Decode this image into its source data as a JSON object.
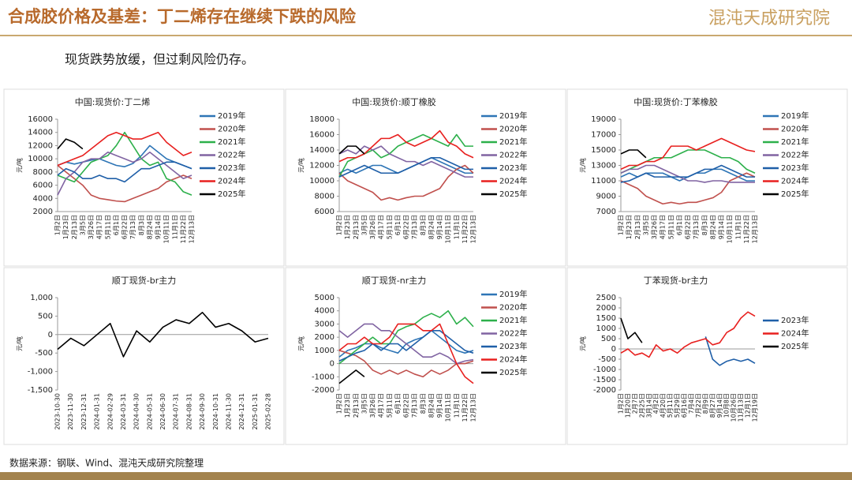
{
  "header": {
    "title": "合成胶价格及基差：丁二烯存在继续下跌的风险",
    "logo": "混沌天成研究院",
    "subtitle": "现货跌势放缓，但过剩风险仍存。"
  },
  "footer": {
    "source": "数据来源：钢联、Wind、混沌天成研究院整理"
  },
  "chart_data": [
    {
      "type": "line",
      "title": "中国:现货价:丁二烯",
      "ylabel": "元/吨",
      "categories": [
        "1月2日",
        "1月23日",
        "2月13日",
        "3月5日",
        "3月26日",
        "4月17日",
        "5月11日",
        "6月1日",
        "6月22日",
        "7月13日",
        "8月3日",
        "8月24日",
        "9月14日",
        "10月11日",
        "11月1日",
        "11月22日",
        "12月13日"
      ],
      "ylim": [
        2000,
        16000
      ],
      "yticks": [
        2000,
        4000,
        6000,
        8000,
        10000,
        12000,
        14000,
        16000
      ],
      "legend": "right",
      "series": [
        {
          "name": "2019年",
          "color": "#2e75b6",
          "values": [
            9000,
            9500,
            9200,
            9500,
            9800,
            10000,
            9500,
            9000,
            8800,
            9300,
            10500,
            12000,
            11000,
            10000,
            9500,
            9000,
            8500
          ]
        },
        {
          "name": "2020年",
          "color": "#c0504d",
          "values": [
            9000,
            8000,
            7000,
            6000,
            4500,
            4000,
            3800,
            3600,
            3500,
            4000,
            4500,
            5000,
            5500,
            6500,
            7000,
            7500,
            7000
          ]
        },
        {
          "name": "2021年",
          "color": "#2db04b",
          "values": [
            7500,
            7000,
            6500,
            8000,
            9500,
            10000,
            10500,
            12000,
            14000,
            12000,
            10000,
            9000,
            9500,
            7000,
            6500,
            5000,
            4500
          ]
        },
        {
          "name": "2022年",
          "color": "#8064a2",
          "values": [
            4500,
            7000,
            8000,
            9500,
            10000,
            10000,
            11000,
            10500,
            10000,
            9500,
            10000,
            11000,
            10000,
            9000,
            8000,
            7000,
            7500
          ]
        },
        {
          "name": "2023年",
          "color": "#1f5fa8",
          "values": [
            7500,
            8500,
            8000,
            7000,
            7000,
            7500,
            7000,
            7000,
            6500,
            7500,
            8500,
            8500,
            9000,
            9500,
            9500,
            9000,
            8500
          ]
        },
        {
          "name": "2024年",
          "color": "#e8201f",
          "values": [
            9000,
            9500,
            10000,
            10500,
            11500,
            12500,
            13500,
            14000,
            13500,
            13000,
            13000,
            13500,
            14000,
            12500,
            11500,
            10500,
            11000
          ]
        },
        {
          "name": "2025年",
          "color": "#000000",
          "values": [
            11500,
            13000,
            12500,
            11500,
            null,
            null,
            null,
            null,
            null,
            null,
            null,
            null,
            null,
            null,
            null,
            null,
            null
          ]
        }
      ]
    },
    {
      "type": "line",
      "title": "中国:现货价:顺丁橡胶",
      "ylabel": "元/吨",
      "categories": [
        "1月2日",
        "1月23日",
        "2月13日",
        "3月5日",
        "3月26日",
        "4月17日",
        "5月11日",
        "6月1日",
        "6月22日",
        "7月13日",
        "8月3日",
        "8月24日",
        "9月14日",
        "10月11日",
        "11月1日",
        "11月22日",
        "12月13日"
      ],
      "ylim": [
        6000,
        18000
      ],
      "yticks": [
        6000,
        8000,
        10000,
        12000,
        14000,
        16000,
        18000
      ],
      "legend": "right",
      "series": [
        {
          "name": "2019年",
          "color": "#2e75b6",
          "values": [
            11000,
            11500,
            11000,
            11500,
            12000,
            12000,
            11500,
            11000,
            11500,
            12000,
            12500,
            13000,
            12500,
            12000,
            11500,
            11000,
            11000
          ]
        },
        {
          "name": "2020年",
          "color": "#c0504d",
          "values": [
            11000,
            10000,
            9500,
            9000,
            8500,
            7500,
            7800,
            7500,
            7800,
            8000,
            8000,
            8500,
            9000,
            10500,
            11500,
            12000,
            11000
          ]
        },
        {
          "name": "2021年",
          "color": "#2db04b",
          "values": [
            10500,
            12500,
            13000,
            13500,
            14000,
            13000,
            13500,
            14500,
            15000,
            15500,
            16000,
            15500,
            15000,
            14500,
            16000,
            14500,
            14500
          ]
        },
        {
          "name": "2022年",
          "color": "#8064a2",
          "values": [
            13500,
            14000,
            13500,
            14500,
            14000,
            14500,
            13500,
            13000,
            12500,
            12500,
            12000,
            12500,
            12000,
            11500,
            11000,
            10500,
            10500
          ]
        },
        {
          "name": "2023年",
          "color": "#1f5fa8",
          "values": [
            10500,
            11000,
            11500,
            12000,
            11500,
            11000,
            11000,
            11000,
            11500,
            12000,
            12500,
            13000,
            13000,
            12500,
            12000,
            11500,
            11500
          ]
        },
        {
          "name": "2024年",
          "color": "#e8201f",
          "values": [
            12500,
            13000,
            13000,
            13500,
            14500,
            15500,
            15500,
            16000,
            15000,
            14500,
            15000,
            15500,
            16500,
            15000,
            14500,
            13500,
            13000
          ]
        },
        {
          "name": "2025年",
          "color": "#000000",
          "values": [
            13500,
            14500,
            14500,
            13500,
            null,
            null,
            null,
            null,
            null,
            null,
            null,
            null,
            null,
            null,
            null,
            null,
            null
          ]
        }
      ]
    },
    {
      "type": "line",
      "title": "中国:现货价:丁苯橡胶",
      "ylabel": "元/吨",
      "categories": [
        "1月2日",
        "1月23日",
        "2月13日",
        "3月5日",
        "3月26日",
        "4月17日",
        "5月11日",
        "6月1日",
        "6月22日",
        "7月13日",
        "8月3日",
        "8月24日",
        "9月14日",
        "10月11日",
        "11月1日",
        "11月22日",
        "12月13日"
      ],
      "ylim": [
        7000,
        19000
      ],
      "yticks": [
        7000,
        9000,
        11000,
        13000,
        15000,
        17000,
        19000
      ],
      "legend": "right",
      "series": [
        {
          "name": "2019年",
          "color": "#2e75b6",
          "values": [
            11500,
            12000,
            11500,
            12000,
            12000,
            12000,
            11500,
            11000,
            11500,
            12000,
            12000,
            12500,
            12500,
            12000,
            11500,
            11000,
            11000
          ]
        },
        {
          "name": "2020年",
          "color": "#c0504d",
          "values": [
            11000,
            10500,
            10000,
            9000,
            8500,
            8000,
            8200,
            8000,
            8200,
            8200,
            8500,
            8800,
            9500,
            11000,
            11500,
            12000,
            11500
          ]
        },
        {
          "name": "2021年",
          "color": "#2db04b",
          "values": [
            12000,
            12500,
            13000,
            13500,
            14000,
            14000,
            14000,
            14500,
            15000,
            15000,
            15000,
            14500,
            14000,
            14000,
            13500,
            12500,
            12000
          ]
        },
        {
          "name": "2022年",
          "color": "#8064a2",
          "values": [
            12000,
            12500,
            12500,
            13000,
            13000,
            12500,
            12000,
            11500,
            11000,
            11000,
            10800,
            11000,
            11000,
            10800,
            10800,
            10800,
            10800
          ]
        },
        {
          "name": "2023年",
          "color": "#1f5fa8",
          "values": [
            10800,
            11000,
            11500,
            12000,
            11500,
            11500,
            11500,
            11500,
            11500,
            12000,
            12500,
            12500,
            13000,
            12500,
            12000,
            11500,
            11500
          ]
        },
        {
          "name": "2024年",
          "color": "#e8201f",
          "values": [
            12500,
            13000,
            13000,
            13500,
            13500,
            14000,
            15500,
            15500,
            15500,
            15000,
            15500,
            16000,
            16500,
            16000,
            15500,
            15000,
            14800
          ]
        },
        {
          "name": "2025年",
          "color": "#000000",
          "values": [
            14500,
            15000,
            15000,
            14000,
            null,
            null,
            null,
            null,
            null,
            null,
            null,
            null,
            null,
            null,
            null,
            null,
            null
          ]
        }
      ]
    },
    {
      "type": "line",
      "title": "顺丁现货-br主力",
      "ylabel": "元/吨",
      "categories": [
        "2023-10-30",
        "2023-11-30",
        "2023-12-31",
        "2024-01-31",
        "2024-02-29",
        "2024-03-31",
        "2024-04-30",
        "2024-05-31",
        "2024-06-30",
        "2024-07-31",
        "2024-08-31",
        "2024-09-30",
        "2024-10-31",
        "2024-11-30",
        "2024-12-31",
        "2025-01-31",
        "2025-02-28"
      ],
      "ylim": [
        -1500,
        1000
      ],
      "yticks": [
        -1500,
        -1000,
        -500,
        0,
        500,
        1000
      ],
      "legend": "none",
      "series": [
        {
          "name": "顺丁现货-br主力",
          "color": "#000000",
          "values": [
            -400,
            -100,
            -300,
            0,
            300,
            -600,
            100,
            -200,
            200,
            400,
            300,
            600,
            200,
            300,
            100,
            -200,
            -100
          ]
        }
      ],
      "ytick_labels": [
        "-1,500",
        "-1,000",
        "-500",
        "0",
        "500",
        "1,000"
      ]
    },
    {
      "type": "line",
      "title": "顺丁现货-nr主力",
      "ylabel": "元/吨",
      "categories": [
        "1月2日",
        "1月23日",
        "2月13日",
        "3月5日",
        "3月26日",
        "4月17日",
        "5月11日",
        "6月1日",
        "6月22日",
        "7月13日",
        "8月3日",
        "8月24日",
        "9月14日",
        "10月11日",
        "11月1日",
        "11月22日",
        "12月13日"
      ],
      "ylim": [
        -2000,
        5000
      ],
      "yticks": [
        -2000,
        -1000,
        0,
        1000,
        2000,
        3000,
        4000,
        5000
      ],
      "legend": "right",
      "series": [
        {
          "name": "2019年",
          "color": "#2e75b6",
          "values": [
            500,
            1000,
            1200,
            1500,
            1500,
            1200,
            1000,
            800,
            1500,
            1800,
            2000,
            2500,
            2000,
            1500,
            1000,
            800,
            1000
          ]
        },
        {
          "name": "2020年",
          "color": "#c0504d",
          "values": [
            1000,
            800,
            600,
            200,
            -500,
            -800,
            -500,
            -800,
            -500,
            -800,
            -1000,
            -500,
            -800,
            -500,
            0,
            0,
            200
          ]
        },
        {
          "name": "2021年",
          "color": "#2db04b",
          "values": [
            0,
            500,
            1000,
            1500,
            2000,
            1500,
            1500,
            2500,
            2800,
            3000,
            3500,
            3800,
            3500,
            4000,
            3000,
            3500,
            2800
          ]
        },
        {
          "name": "2022年",
          "color": "#8064a2",
          "values": [
            2500,
            2000,
            2500,
            3000,
            3000,
            2500,
            2500,
            2000,
            1500,
            1000,
            500,
            500,
            800,
            500,
            0,
            200,
            300
          ]
        },
        {
          "name": "2023年",
          "color": "#1f5fa8",
          "values": [
            200,
            500,
            800,
            1000,
            1500,
            1000,
            1500,
            1500,
            1000,
            1500,
            2000,
            2500,
            2500,
            2000,
            1500,
            1000,
            800
          ]
        },
        {
          "name": "2024年",
          "color": "#e8201f",
          "values": [
            1000,
            1500,
            1500,
            2000,
            1500,
            1500,
            2000,
            3000,
            3000,
            3000,
            2500,
            2500,
            3000,
            1500,
            0,
            -1000,
            -1500
          ]
        },
        {
          "name": "2025年",
          "color": "#000000",
          "values": [
            -1500,
            -1000,
            -500,
            -1000,
            null,
            null,
            null,
            null,
            null,
            null,
            null,
            null,
            null,
            null,
            null,
            null,
            null
          ]
        }
      ]
    },
    {
      "type": "line",
      "title": "丁苯现货-br主力",
      "ylabel": "元/吨",
      "categories": [
        "1月2日",
        "1月20日",
        "2月7日",
        "2月25日",
        "3月14日",
        "4月2日",
        "4月20日",
        "5月11日",
        "5月29日",
        "6月16日",
        "7月4日",
        "7月22日",
        "8月9日",
        "8月27日",
        "9月14日",
        "10月8日",
        "10月26日",
        "11月13日",
        "12月1日",
        "12月19日"
      ],
      "ylim": [
        -2000,
        2500
      ],
      "yticks": [
        -2000,
        -1500,
        -1000,
        -500,
        0,
        500,
        1000,
        1500,
        2000,
        2500
      ],
      "legend": "right",
      "series": [
        {
          "name": "2023年",
          "color": "#1f5fa8",
          "values": [
            null,
            null,
            null,
            null,
            null,
            null,
            null,
            null,
            null,
            null,
            null,
            null,
            600,
            -500,
            -800,
            -600,
            -500,
            -600,
            -500,
            -700
          ]
        },
        {
          "name": "2024年",
          "color": "#e8201f",
          "values": [
            -200,
            0,
            -300,
            -200,
            -400,
            200,
            -100,
            0,
            -200,
            100,
            300,
            400,
            500,
            200,
            300,
            800,
            1000,
            1500,
            1800,
            1600
          ]
        },
        {
          "name": "2025年",
          "color": "#000000",
          "values": [
            1500,
            500,
            800,
            300,
            null,
            null,
            null,
            null,
            null,
            null,
            null,
            null,
            null,
            null,
            null,
            null,
            null,
            null,
            null,
            null
          ]
        }
      ]
    }
  ]
}
